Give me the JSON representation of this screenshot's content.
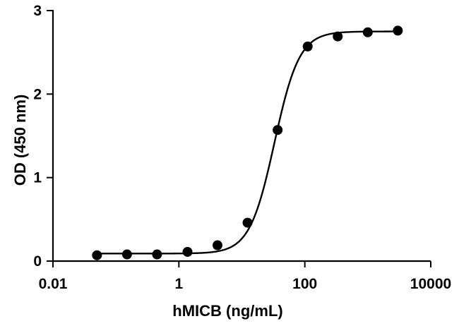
{
  "chart_data": {
    "type": "scatter",
    "xlabel": "hMICB (ng/mL)",
    "ylabel": "OD (450 nm)",
    "x_scale": "log",
    "xlim": [
      0.01,
      10000
    ],
    "ylim": [
      0,
      3
    ],
    "x_ticks": [
      0.01,
      1,
      100,
      10000
    ],
    "x_tick_labels": [
      "0.01",
      "1",
      "100",
      "10000"
    ],
    "y_ticks": [
      0,
      1,
      2,
      3
    ],
    "y_tick_labels": [
      "0",
      "1",
      "2",
      "3"
    ],
    "grid": false,
    "legend": "none",
    "series": [
      {
        "x": [
          0.05,
          0.15,
          0.45,
          1.37,
          4.1,
          12.3,
          37,
          111,
          333,
          1000,
          3000
        ],
        "y": [
          0.07,
          0.08,
          0.08,
          0.11,
          0.19,
          0.46,
          1.57,
          2.57,
          2.69,
          2.74,
          2.76
        ]
      }
    ],
    "fit": {
      "model": "four-parameter logistic",
      "bottom": 0.09,
      "top": 2.75,
      "ec50": 33,
      "hill": 2.2
    }
  }
}
